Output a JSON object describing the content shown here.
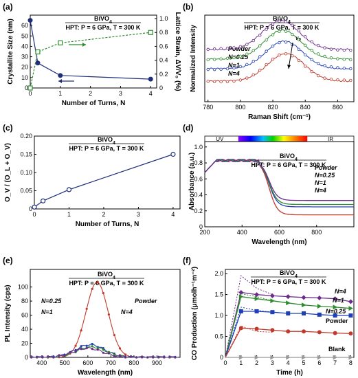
{
  "figure": {
    "panel_labels": [
      "(a)",
      "(b)",
      "(c)",
      "(d)",
      "(e)",
      "(f)"
    ],
    "material": "BiVO",
    "material_sub": "4",
    "condition": "HPT: P = 6 GPa, T = 300 K"
  },
  "chart_data": [
    {
      "id": "a",
      "type": "line",
      "x_label": "Number of Turns, N",
      "y_label": "Crystallite Size (nm)",
      "y2_label": "Lattice Strain, ΔV/V₀ (%)",
      "xlim": [
        0,
        4.2
      ],
      "ylim": [
        0,
        70
      ],
      "y2lim": [
        0,
        1.05
      ],
      "x_ticks": [
        0,
        1,
        2,
        3,
        4
      ],
      "y_ticks": [
        0,
        10,
        20,
        30,
        40,
        50,
        60
      ],
      "y2_ticks": [
        0,
        0.2,
        0.4,
        0.6,
        0.8,
        1.0
      ],
      "series": [
        {
          "name": "Crystallite Size",
          "axis": "left",
          "x": [
            0,
            0.25,
            1,
            4
          ],
          "y": [
            65,
            24,
            12,
            8.5
          ],
          "color": "#1f2f7a"
        },
        {
          "name": "Lattice Strain",
          "axis": "right",
          "x": [
            0,
            0.25,
            1,
            4
          ],
          "y": [
            0.0,
            0.52,
            0.65,
            0.8
          ],
          "color": "#2e8b2e"
        }
      ]
    },
    {
      "id": "b",
      "type": "line",
      "x_label": "Raman Shift (cm⁻¹)",
      "y_label": "Normalized Intensity",
      "xlim": [
        778,
        870
      ],
      "x_ticks": [
        780,
        800,
        820,
        840,
        860
      ],
      "annotation": "ν₆",
      "series": [
        {
          "name": "Powder",
          "color": "#c0392b",
          "peak": 828
        },
        {
          "name": "N=0.25",
          "color": "#1f3fb5",
          "peak": 827
        },
        {
          "name": "N=1",
          "color": "#2e8b2e",
          "peak": 826
        },
        {
          "name": "N=4",
          "color": "#6b2a8c",
          "peak": 825
        }
      ]
    },
    {
      "id": "c",
      "type": "line",
      "x_label": "Number of Turns, N",
      "y_label": "O_V / (O_L + O_V)",
      "xlim": [
        0,
        4.2
      ],
      "ylim": [
        0,
        0.2
      ],
      "x_ticks": [
        0,
        1,
        2,
        3,
        4
      ],
      "y_ticks": [
        "0",
        "0.05",
        "0.10",
        "0.15",
        "0.20"
      ],
      "series": [
        {
          "name": "Ov ratio",
          "x": [
            0,
            0.25,
            1,
            4
          ],
          "y": [
            0.005,
            0.022,
            0.053,
            0.15
          ],
          "color": "#1f2f7a"
        }
      ]
    },
    {
      "id": "d",
      "type": "line",
      "x_label": "Wavelength (nm)",
      "y_label": "Absorbance (a.u.)",
      "xlim": [
        200,
        1000
      ],
      "ylim": [
        0,
        1.05
      ],
      "x_ticks": [
        200,
        400,
        600,
        800
      ],
      "y_ticks": [
        "0",
        "0.2",
        "0.4",
        "0.6",
        "0.8",
        "1.0"
      ],
      "band_labels": [
        "UV",
        "IR"
      ],
      "series": [
        {
          "name": "Powder",
          "color": "#c0392b",
          "tail": 0.15
        },
        {
          "name": "N=0.25",
          "color": "#1f3fb5",
          "tail": 0.25
        },
        {
          "name": "N=1",
          "color": "#2e8b2e",
          "tail": 0.28
        },
        {
          "name": "N=4",
          "color": "#6b2a8c",
          "tail": 0.33
        }
      ]
    },
    {
      "id": "e",
      "type": "line",
      "x_label": "Wavelength (nm)",
      "y_label": "PL Intensity (cps)",
      "xlim": [
        350,
        1000
      ],
      "ylim": [
        0,
        125
      ],
      "x_ticks": [
        400,
        500,
        600,
        700,
        800,
        900
      ],
      "y_ticks": [
        0,
        20,
        40,
        60,
        80,
        100
      ],
      "series": [
        {
          "name": "Powder",
          "color": "#c0392b",
          "peak_x": 640,
          "peak_y": 107
        },
        {
          "name": "N=0.25",
          "color": "#1f3fb5",
          "peak_x": 610,
          "peak_y": 18
        },
        {
          "name": "N=1",
          "color": "#2e8b2e",
          "peak_x": 615,
          "peak_y": 15
        },
        {
          "name": "N=4",
          "color": "#6b2a8c",
          "peak_x": 600,
          "peak_y": 13
        }
      ]
    },
    {
      "id": "f",
      "type": "line",
      "x_label": "Time (h)",
      "y_label": "CO Production (μmolh⁻¹m⁻²)",
      "xlim": [
        0,
        8.2
      ],
      "ylim": [
        0,
        2.1
      ],
      "x_ticks": [
        0,
        1,
        2,
        3,
        4,
        5,
        6,
        7,
        8
      ],
      "y_ticks": [
        "0",
        "0.5",
        "1.0",
        "1.5",
        "2.0"
      ],
      "series": [
        {
          "name": "N=4",
          "color": "#6b2a8c",
          "x": [
            0,
            1,
            2,
            3,
            4,
            5,
            6,
            7,
            8
          ],
          "y": [
            0,
            1.55,
            1.5,
            1.47,
            1.45,
            1.43,
            1.42,
            1.4,
            1.33
          ],
          "early": [
            0,
            1.95,
            1.65,
            1.5
          ]
        },
        {
          "name": "N=1",
          "color": "#2e8b2e",
          "x": [
            0,
            1,
            2,
            3,
            4,
            5,
            6,
            7,
            8
          ],
          "y": [
            0,
            1.45,
            1.4,
            1.35,
            1.3,
            1.25,
            1.22,
            1.2,
            1.17
          ],
          "early": [
            0,
            1.52,
            1.45,
            1.35
          ]
        },
        {
          "name": "N=0.25",
          "color": "#1f3fb5",
          "x": [
            0,
            1,
            2,
            3,
            4,
            5,
            6,
            7,
            8
          ],
          "y": [
            0,
            1.1,
            1.1,
            1.08,
            1.05,
            1.05,
            1.02,
            1.0,
            1.0
          ],
          "early": [
            0,
            1.2,
            1.12,
            1.08
          ]
        },
        {
          "name": "Powder",
          "color": "#c0392b",
          "x": [
            0,
            1,
            2,
            3,
            4,
            5,
            6,
            7,
            8
          ],
          "y": [
            0,
            0.7,
            0.68,
            0.65,
            0.62,
            0.62,
            0.6,
            0.58,
            0.57
          ],
          "early": [
            0,
            0.75,
            0.62,
            0.6
          ]
        },
        {
          "name": "Blank",
          "color": "#999999",
          "x": [
            0,
            1,
            2,
            3,
            4,
            5,
            6,
            7,
            8
          ],
          "y": [
            0,
            0,
            0,
            0,
            0,
            0,
            0,
            0,
            0
          ],
          "early": [
            0,
            0,
            0,
            0
          ]
        }
      ]
    }
  ]
}
